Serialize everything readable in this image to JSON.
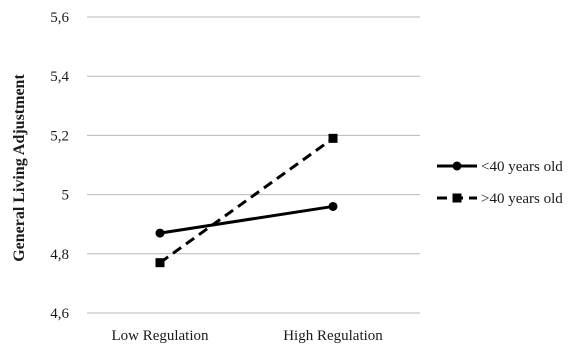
{
  "chart_data": {
    "type": "line",
    "title": "",
    "xlabel": "",
    "ylabel": "General Living Adjustment",
    "categories": [
      "Low Regulation",
      "High Regulation"
    ],
    "ylim": [
      4.6,
      5.6
    ],
    "yticks": [
      "4,6",
      "4,8",
      "5",
      "5,2",
      "5,4",
      "5,6"
    ],
    "ytick_values": [
      4.6,
      4.8,
      5.0,
      5.2,
      5.4,
      5.6
    ],
    "grid": "horizontal",
    "legend_position": "right",
    "series": [
      {
        "name": "<40 years old",
        "values": [
          4.87,
          4.96
        ],
        "marker": "circle",
        "line_style": "solid",
        "color": "#000000"
      },
      {
        "name": ">40 years old",
        "values": [
          4.77,
          5.19
        ],
        "marker": "square",
        "line_style": "dashed",
        "color": "#000000"
      }
    ]
  }
}
